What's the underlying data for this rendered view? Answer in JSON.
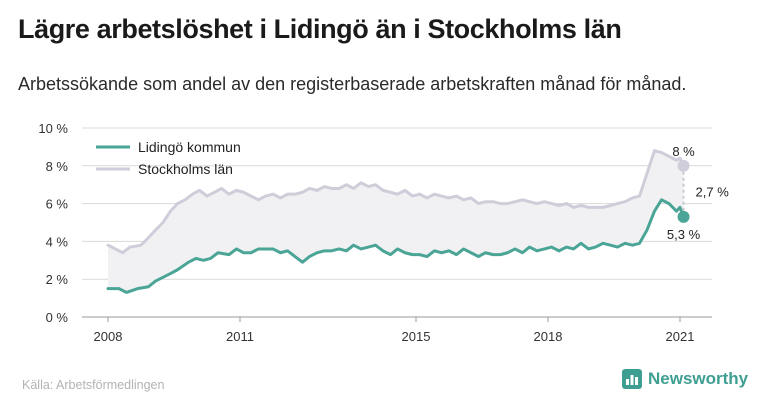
{
  "title": "Lägre arbetslöshet i Lidingö än i Stockholms län",
  "subtitle": "Arbetssökande som andel av den registerbaserade arbetskraften månad för månad.",
  "source": "Källa: Arbetsförmedlingen",
  "brand": "Newsworthy",
  "colors": {
    "lidingo": "#4aa596",
    "stockholm": "#cfcdd9",
    "fill": "#f1f1f3",
    "grid": "#d9d9d9",
    "brand": "#3f9e92"
  },
  "chart_data": {
    "type": "line",
    "unit": "%",
    "xlabel": "",
    "ylabel": "",
    "ylim": [
      0,
      10
    ],
    "yticks": [
      0,
      2,
      4,
      6,
      8,
      10
    ],
    "ytick_labels": [
      "0 %",
      "2 %",
      "4 %",
      "6 %",
      "8 %",
      "10 %"
    ],
    "xlim": [
      2008.0,
      2021.25
    ],
    "xticks": [
      2008,
      2011,
      2015,
      2018,
      2021
    ],
    "xtick_labels": [
      "2008",
      "2011",
      "2015",
      "2018",
      "2021"
    ],
    "grid": true,
    "legend": "top-left",
    "series": [
      {
        "name": "Lidingö kommun",
        "color": "#4aa596",
        "points": [
          [
            2008.0,
            1.5
          ],
          [
            2008.25,
            1.5
          ],
          [
            2008.42,
            1.3
          ],
          [
            2008.67,
            1.5
          ],
          [
            2008.92,
            1.6
          ],
          [
            2009.08,
            1.9
          ],
          [
            2009.25,
            2.1
          ],
          [
            2009.42,
            2.3
          ],
          [
            2009.58,
            2.5
          ],
          [
            2009.83,
            2.9
          ],
          [
            2010.0,
            3.1
          ],
          [
            2010.17,
            3.0
          ],
          [
            2010.33,
            3.1
          ],
          [
            2010.5,
            3.4
          ],
          [
            2010.75,
            3.3
          ],
          [
            2010.92,
            3.6
          ],
          [
            2011.08,
            3.4
          ],
          [
            2011.25,
            3.4
          ],
          [
            2011.42,
            3.6
          ],
          [
            2011.58,
            3.6
          ],
          [
            2011.75,
            3.6
          ],
          [
            2011.92,
            3.4
          ],
          [
            2012.08,
            3.5
          ],
          [
            2012.25,
            3.2
          ],
          [
            2012.42,
            2.9
          ],
          [
            2012.58,
            3.2
          ],
          [
            2012.75,
            3.4
          ],
          [
            2012.92,
            3.5
          ],
          [
            2013.08,
            3.5
          ],
          [
            2013.25,
            3.6
          ],
          [
            2013.42,
            3.5
          ],
          [
            2013.58,
            3.8
          ],
          [
            2013.75,
            3.6
          ],
          [
            2013.92,
            3.7
          ],
          [
            2014.08,
            3.8
          ],
          [
            2014.25,
            3.5
          ],
          [
            2014.42,
            3.3
          ],
          [
            2014.58,
            3.6
          ],
          [
            2014.75,
            3.4
          ],
          [
            2014.92,
            3.3
          ],
          [
            2015.08,
            3.3
          ],
          [
            2015.25,
            3.2
          ],
          [
            2015.42,
            3.5
          ],
          [
            2015.58,
            3.4
          ],
          [
            2015.75,
            3.5
          ],
          [
            2015.92,
            3.3
          ],
          [
            2016.08,
            3.6
          ],
          [
            2016.25,
            3.4
          ],
          [
            2016.42,
            3.2
          ],
          [
            2016.58,
            3.4
          ],
          [
            2016.75,
            3.3
          ],
          [
            2016.92,
            3.3
          ],
          [
            2017.08,
            3.4
          ],
          [
            2017.25,
            3.6
          ],
          [
            2017.42,
            3.4
          ],
          [
            2017.58,
            3.7
          ],
          [
            2017.75,
            3.5
          ],
          [
            2017.92,
            3.6
          ],
          [
            2018.08,
            3.7
          ],
          [
            2018.25,
            3.5
          ],
          [
            2018.42,
            3.7
          ],
          [
            2018.58,
            3.6
          ],
          [
            2018.75,
            3.9
          ],
          [
            2018.92,
            3.6
          ],
          [
            2019.08,
            3.7
          ],
          [
            2019.25,
            3.9
          ],
          [
            2019.42,
            3.8
          ],
          [
            2019.58,
            3.7
          ],
          [
            2019.75,
            3.9
          ],
          [
            2019.92,
            3.8
          ],
          [
            2020.08,
            3.9
          ],
          [
            2020.25,
            4.6
          ],
          [
            2020.42,
            5.6
          ],
          [
            2020.58,
            6.2
          ],
          [
            2020.75,
            6.0
          ],
          [
            2020.92,
            5.6
          ],
          [
            2021.0,
            5.8
          ],
          [
            2021.08,
            5.3
          ]
        ],
        "end_label": "5,3 %"
      },
      {
        "name": "Stockholms län",
        "color": "#cfcdd9",
        "points": [
          [
            2008.0,
            3.8
          ],
          [
            2008.17,
            3.6
          ],
          [
            2008.33,
            3.4
          ],
          [
            2008.5,
            3.7
          ],
          [
            2008.75,
            3.8
          ],
          [
            2008.92,
            4.2
          ],
          [
            2009.08,
            4.6
          ],
          [
            2009.25,
            5.0
          ],
          [
            2009.42,
            5.6
          ],
          [
            2009.58,
            6.0
          ],
          [
            2009.75,
            6.2
          ],
          [
            2009.92,
            6.5
          ],
          [
            2010.08,
            6.7
          ],
          [
            2010.25,
            6.4
          ],
          [
            2010.42,
            6.6
          ],
          [
            2010.58,
            6.8
          ],
          [
            2010.75,
            6.5
          ],
          [
            2010.92,
            6.7
          ],
          [
            2011.08,
            6.6
          ],
          [
            2011.25,
            6.4
          ],
          [
            2011.42,
            6.2
          ],
          [
            2011.58,
            6.4
          ],
          [
            2011.75,
            6.5
          ],
          [
            2011.92,
            6.3
          ],
          [
            2012.08,
            6.5
          ],
          [
            2012.25,
            6.5
          ],
          [
            2012.42,
            6.6
          ],
          [
            2012.58,
            6.8
          ],
          [
            2012.75,
            6.7
          ],
          [
            2012.92,
            6.9
          ],
          [
            2013.08,
            6.8
          ],
          [
            2013.25,
            6.8
          ],
          [
            2013.42,
            7.0
          ],
          [
            2013.58,
            6.8
          ],
          [
            2013.75,
            7.1
          ],
          [
            2013.92,
            6.9
          ],
          [
            2014.08,
            7.0
          ],
          [
            2014.25,
            6.7
          ],
          [
            2014.42,
            6.6
          ],
          [
            2014.58,
            6.5
          ],
          [
            2014.75,
            6.7
          ],
          [
            2014.92,
            6.4
          ],
          [
            2015.08,
            6.5
          ],
          [
            2015.25,
            6.3
          ],
          [
            2015.42,
            6.5
          ],
          [
            2015.58,
            6.4
          ],
          [
            2015.75,
            6.3
          ],
          [
            2015.92,
            6.4
          ],
          [
            2016.08,
            6.2
          ],
          [
            2016.25,
            6.3
          ],
          [
            2016.42,
            6.0
          ],
          [
            2016.58,
            6.1
          ],
          [
            2016.75,
            6.1
          ],
          [
            2016.92,
            6.0
          ],
          [
            2017.08,
            6.0
          ],
          [
            2017.25,
            6.1
          ],
          [
            2017.42,
            6.2
          ],
          [
            2017.58,
            6.1
          ],
          [
            2017.75,
            6.0
          ],
          [
            2017.92,
            6.1
          ],
          [
            2018.08,
            6.0
          ],
          [
            2018.25,
            5.9
          ],
          [
            2018.42,
            6.0
          ],
          [
            2018.58,
            5.8
          ],
          [
            2018.75,
            5.9
          ],
          [
            2018.92,
            5.8
          ],
          [
            2019.08,
            5.8
          ],
          [
            2019.25,
            5.8
          ],
          [
            2019.42,
            5.9
          ],
          [
            2019.58,
            6.0
          ],
          [
            2019.75,
            6.1
          ],
          [
            2019.92,
            6.3
          ],
          [
            2020.08,
            6.4
          ],
          [
            2020.25,
            7.6
          ],
          [
            2020.42,
            8.8
          ],
          [
            2020.58,
            8.7
          ],
          [
            2020.75,
            8.5
          ],
          [
            2020.92,
            8.3
          ],
          [
            2021.0,
            8.4
          ],
          [
            2021.08,
            8.0
          ]
        ],
        "end_label": "8 %"
      }
    ],
    "gap_label": "2,7 %"
  }
}
